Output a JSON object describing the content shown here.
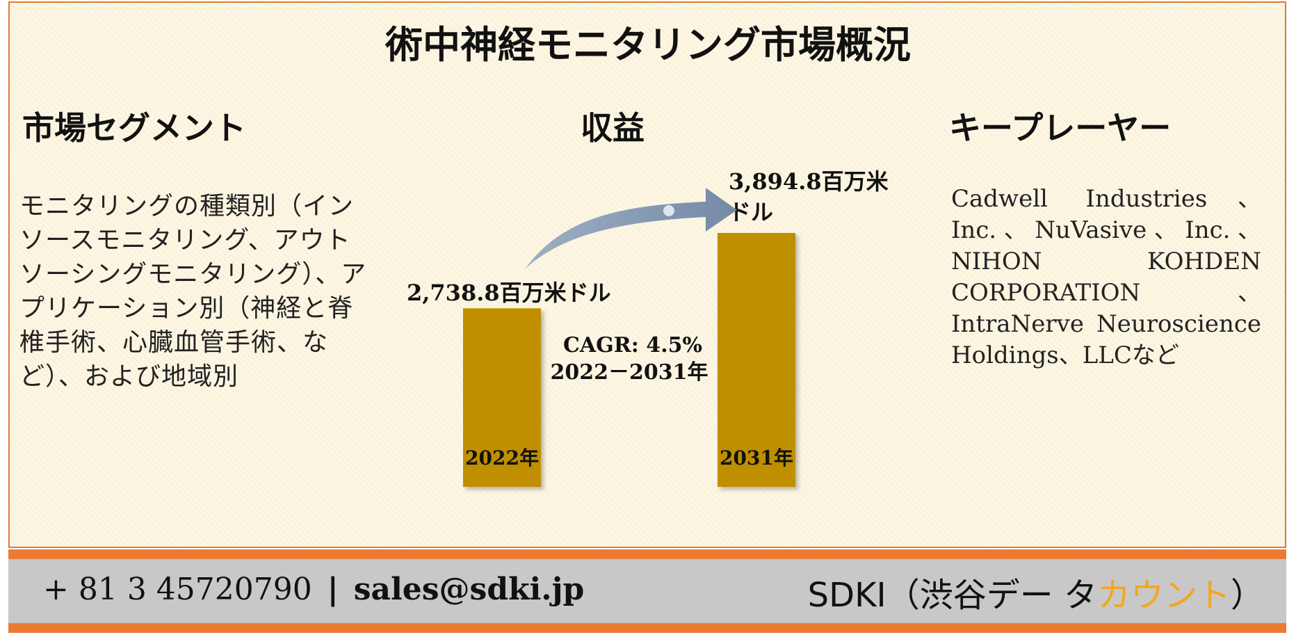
{
  "title": "術中神経モニタリング市場概況",
  "segments": {
    "heading": "市場セグメント",
    "text": "モニタリングの種類別（インソースモニタリング、アウトソーシングモニタリング）、アプリケーション別（神経と脊椎手術、心臓血管手術、など）、および地域別"
  },
  "revenue": {
    "heading": "収益"
  },
  "key_players": {
    "heading": "キープレーヤー",
    "text": "Cadwell Industries、Inc.、NuVasive、Inc.、NIHON KOHDEN CORPORATION 、IntraNerve Neuroscience Holdings、LLCなど"
  },
  "chart_data": {
    "type": "bar",
    "categories": [
      "2022年",
      "2031年"
    ],
    "values": [
      2738.8,
      3894.8
    ],
    "value_labels": [
      "2,738.8百万米ドル",
      "3,894.8百万米ドル"
    ],
    "annotation": [
      "CAGR: 4.5%",
      "2022－2031年"
    ],
    "bar_color": "#bf8f00",
    "arrow_color": "#8096b0"
  },
  "footer": {
    "phone": "+ 81 3 45720790",
    "separator": "|",
    "email": "sales@sdki.jp",
    "brand_prefix": "SDKI（渋谷デー タ",
    "brand_accent": "カウント",
    "brand_suffix": "）"
  },
  "colors": {
    "border": "#e07a2a",
    "footer_band": "#ec7a35",
    "footer_gray": "#c8c8c8",
    "accent": "#f0a81e"
  }
}
